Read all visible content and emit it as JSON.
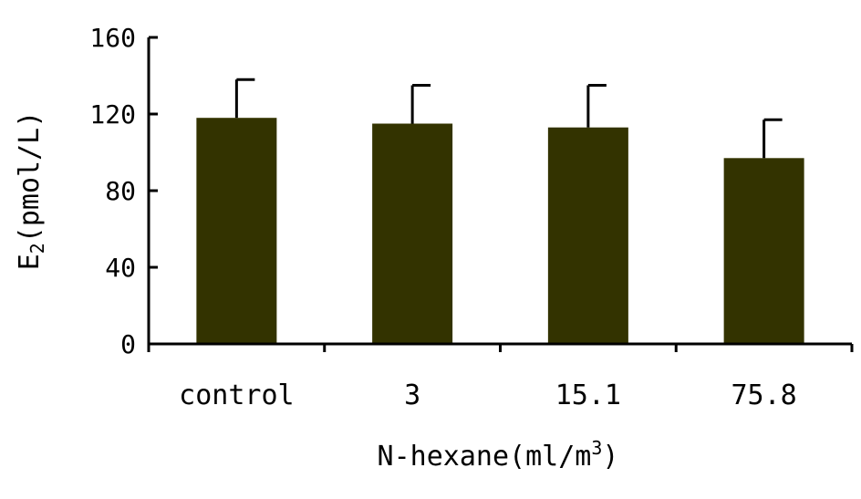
{
  "chart_data": {
    "type": "bar",
    "categories": [
      "control",
      "3",
      "15.1",
      "75.8"
    ],
    "values": [
      118,
      115,
      113,
      97
    ],
    "error": [
      20,
      20,
      22,
      20
    ],
    "xlabel": "N-hexane(ml/m3)",
    "xlabel_parts": {
      "main": "N-hexane(ml/m",
      "sup": "3",
      "end": ")"
    },
    "ylabel": "E2(pmol/L)",
    "ylabel_parts": {
      "main": "E",
      "sub": "2",
      "end": "(pmol/L)"
    },
    "ylim": [
      0,
      160
    ],
    "yticks": [
      "0",
      "40",
      "80",
      "120",
      "160"
    ],
    "grid": false,
    "bar_color": "#333300"
  }
}
